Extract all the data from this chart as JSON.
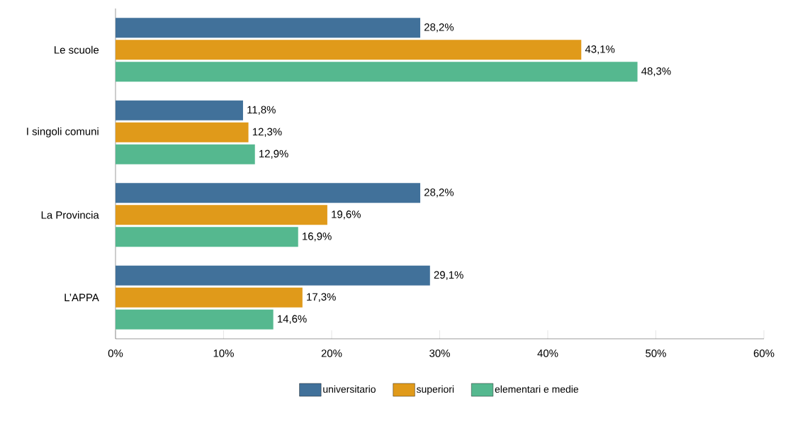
{
  "chart_data": {
    "type": "bar",
    "orientation": "horizontal",
    "categories": [
      "Le scuole",
      "I singoli comuni",
      "La Provincia",
      "L’APPA"
    ],
    "series": [
      {
        "name": "universitario",
        "color": "#41719a",
        "values": [
          28.2,
          11.8,
          28.2,
          29.1
        ],
        "value_labels": [
          "28,2%",
          "11,8%",
          "28,2%",
          "29,1%"
        ]
      },
      {
        "name": "superiori",
        "color": "#e09a1a",
        "values": [
          43.1,
          12.3,
          19.6,
          17.3
        ],
        "value_labels": [
          "43,1%",
          "12,3%",
          "19,6%",
          "17,3%"
        ]
      },
      {
        "name": "elementari e medie",
        "color": "#55b88f",
        "values": [
          48.3,
          12.9,
          16.9,
          14.6
        ],
        "value_labels": [
          "48,3%",
          "12,9%",
          "16,9%",
          "14,6%"
        ]
      }
    ],
    "xlim": [
      0,
      60
    ],
    "xticks": [
      {
        "value": 0,
        "label": "0%"
      },
      {
        "value": 10,
        "label": "10%"
      },
      {
        "value": 20,
        "label": "20%"
      },
      {
        "value": 30,
        "label": "30%"
      },
      {
        "value": 40,
        "label": "40%"
      },
      {
        "value": 50,
        "label": "50%"
      },
      {
        "value": 60,
        "label": "60%"
      }
    ],
    "grid": false,
    "legend": "bottom"
  }
}
